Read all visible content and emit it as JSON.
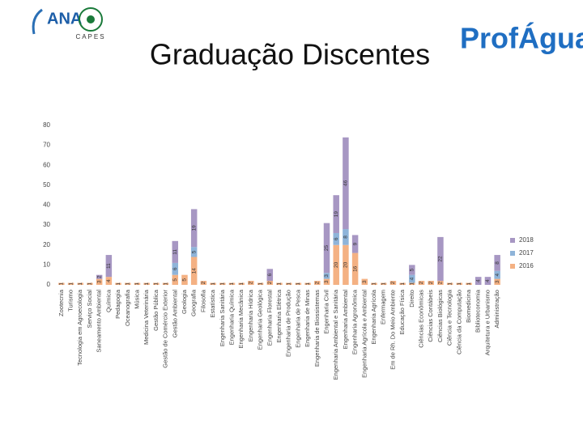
{
  "logos": {
    "left": "ANA",
    "middle": "CAPES",
    "right": "ProfÁgua"
  },
  "chart_data": {
    "type": "bar",
    "stacked": true,
    "title": "Graduação Discentes",
    "categories": [
      "Zootecnia",
      "Turismo",
      "Tecnologia em Agroecologia",
      "Serviço Social",
      "Saneamento Ambiental",
      "Química",
      "Pedagogia",
      "Oceanografia",
      "Música",
      "Medicina Veterinária",
      "Gestão Pública",
      "Gestão de Comércio Exterior",
      "Gestão Ambiental",
      "Geologia",
      "Geografia",
      "Filosofia",
      "Estatística",
      "Engenharia Sanitária",
      "Engenharia Química",
      "Engenharia Mecânica",
      "Engenharia Hídrica",
      "Engenharia Geológica",
      "Engenharia Florestal",
      "Engenharia Elétrica",
      "Engenharia de Produção",
      "Engenharia de Pesca",
      "Engenharia de Minas",
      "Engenharia de Biossistemas",
      "Engenharia Civil",
      "Engenharia Ambiental e Sanitária",
      "Engenharia Ambiental",
      "Engenharia Agronômica",
      "Engenharia Agrícola e Ambiental",
      "Engenharia Agrícola",
      "Enfermagem",
      "Em de Rh. Do Meio Ambiente",
      "Educação Física",
      "Direito",
      "Ciências Econômicas",
      "Ciências Contábeis",
      "Ciências Biológicas",
      "Ciência e Tecnologia",
      "Ciência da Computação",
      "Biomedicina",
      "Biblioteconomia",
      "Arquitetura e Urbanismo",
      "Administração"
    ],
    "series": [
      {
        "name": "2016",
        "color": "#f4b183",
        "values": [
          1,
          1,
          1,
          1,
          3,
          4,
          1,
          1,
          1,
          1,
          1,
          1,
          5,
          5,
          14,
          2,
          1,
          1,
          1,
          1,
          2,
          1,
          2,
          1,
          1,
          1,
          1,
          2,
          3,
          20,
          20,
          16,
          3,
          1,
          1,
          2,
          1,
          1,
          2,
          2,
          2,
          1,
          1,
          1,
          0,
          0,
          3
        ]
      },
      {
        "name": "2017",
        "color": "#8fb4d9",
        "values": [
          0,
          0,
          0,
          0,
          0,
          0,
          0,
          0,
          0,
          0,
          0,
          0,
          6,
          0,
          5,
          0,
          0,
          0,
          0,
          0,
          0,
          0,
          0,
          0,
          0,
          0,
          0,
          0,
          3,
          6,
          8,
          0,
          0,
          0,
          0,
          0,
          0,
          4,
          0,
          0,
          0,
          0,
          0,
          0,
          0,
          0,
          4
        ]
      },
      {
        "name": "2018",
        "color": "#a797c3",
        "values": [
          0,
          0,
          0,
          0,
          2,
          11,
          0,
          0,
          0,
          0,
          0,
          0,
          11,
          0,
          19,
          0,
          0,
          0,
          0,
          0,
          0,
          0,
          6,
          0,
          0,
          0,
          0,
          0,
          25,
          19,
          46,
          9,
          0,
          0,
          0,
          0,
          0,
          5,
          0,
          0,
          22,
          0,
          0,
          0,
          4,
          4,
          8
        ]
      }
    ],
    "ylim": [
      0,
      80
    ],
    "yticks": [
      0,
      10,
      20,
      30,
      40,
      50,
      60,
      70,
      80
    ],
    "legend": "right"
  }
}
